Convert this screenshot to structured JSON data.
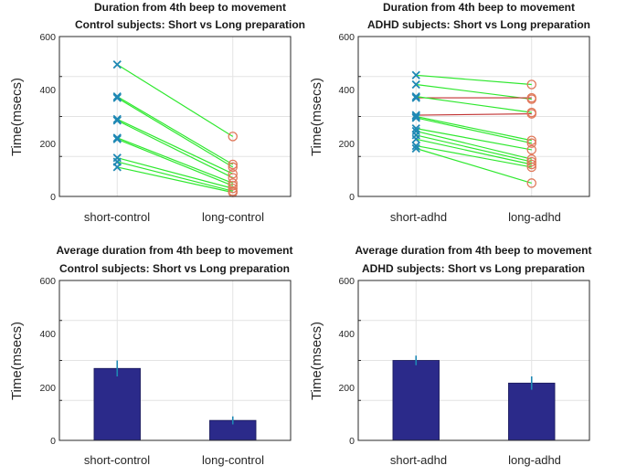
{
  "colors": {
    "increase_line": "#2ee82e",
    "decrease_line": "#c03030",
    "short_marker": "#1e88b4",
    "long_marker": "#e0785a",
    "bar_fill": "#2b2a8a",
    "error_bar": "#1e88b4",
    "grid": "#e3e3e3",
    "axis": "#2a2a2a"
  },
  "chart_data": [
    {
      "id": "control-paired",
      "type": "scatter",
      "title": "Duration from 4th beep to movement",
      "subtitle": "Control subjects: Short vs Long preparation",
      "ylabel": "Time(msecs)",
      "ylim": [
        0,
        600
      ],
      "yticks": [
        "0",
        "200",
        "400",
        "600"
      ],
      "categories": [
        "short-control",
        "long-control"
      ],
      "pairs": [
        [
          495,
          225
        ],
        [
          375,
          120
        ],
        [
          370,
          110
        ],
        [
          290,
          85
        ],
        [
          285,
          70
        ],
        [
          220,
          50
        ],
        [
          215,
          40
        ],
        [
          145,
          30
        ],
        [
          130,
          20
        ],
        [
          110,
          15
        ]
      ]
    },
    {
      "id": "adhd-paired",
      "type": "scatter",
      "title": "Duration from 4th beep to movement",
      "subtitle": "ADHD subjects: Short vs Long preparation",
      "ylabel": "Time(msecs)",
      "ylim": [
        0,
        600
      ],
      "yticks": [
        "0",
        "200",
        "400",
        "600"
      ],
      "categories": [
        "short-adhd",
        "long-adhd"
      ],
      "pairs": [
        [
          455,
          420
        ],
        [
          420,
          365
        ],
        [
          370,
          370
        ],
        [
          375,
          315
        ],
        [
          305,
          310
        ],
        [
          300,
          210
        ],
        [
          295,
          200
        ],
        [
          255,
          175
        ],
        [
          245,
          140
        ],
        [
          230,
          130
        ],
        [
          215,
          120
        ],
        [
          190,
          110
        ],
        [
          180,
          50
        ]
      ]
    },
    {
      "id": "control-average",
      "type": "bar",
      "title": "Average duration from 4th beep to movement",
      "subtitle": "Control subjects: Short vs Long preparation",
      "ylabel": "Time(msecs)",
      "ylim": [
        0,
        600
      ],
      "yticks": [
        "0",
        "200",
        "400",
        "600"
      ],
      "categories": [
        "short-control",
        "long-control"
      ],
      "values": [
        270,
        75
      ],
      "errors": [
        30,
        15
      ]
    },
    {
      "id": "adhd-average",
      "type": "bar",
      "title": "Average duration from 4th beep to movement",
      "subtitle": "ADHD subjects: Short vs Long preparation",
      "ylabel": "Time(msecs)",
      "ylim": [
        0,
        600
      ],
      "yticks": [
        "0",
        "200",
        "400",
        "600"
      ],
      "categories": [
        "short-adhd",
        "long-adhd"
      ],
      "values": [
        300,
        215
      ],
      "errors": [
        18,
        25
      ]
    }
  ]
}
